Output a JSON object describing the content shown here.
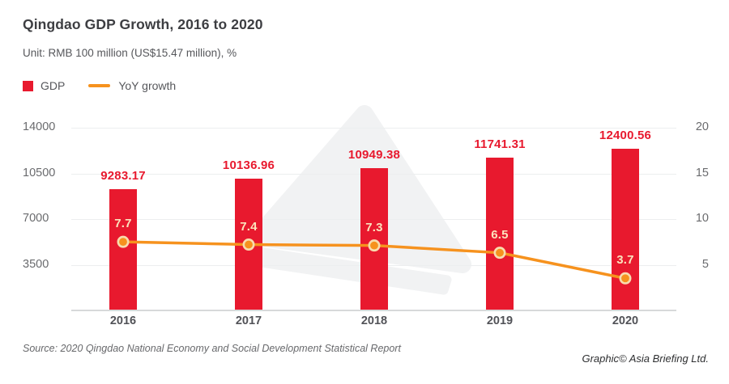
{
  "header": {
    "title": "Qingdao GDP Growth, 2016 to 2020",
    "subtitle": "Unit: RMB 100 million (US$15.47 million), %"
  },
  "legend": {
    "gdp_label": "GDP",
    "yoy_label": "YoY growth"
  },
  "chart_data": {
    "type": "combo-bar-line",
    "title": "Qingdao GDP Growth, 2016 to 2020",
    "unit_note": "Unit: RMB 100 million (US$15.47 million), %",
    "categories": [
      "2016",
      "2017",
      "2018",
      "2019",
      "2020"
    ],
    "series": [
      {
        "name": "GDP",
        "type": "bar",
        "axis": "left",
        "color": "#e8192e",
        "values": [
          9283.17,
          10136.96,
          10949.38,
          11741.31,
          12400.56
        ],
        "labels": [
          "9283.17",
          "10136.96",
          "10949.38",
          "11741.31",
          "12400.56"
        ]
      },
      {
        "name": "YoY growth",
        "type": "line",
        "axis": "right",
        "color": "#f6921e",
        "marker_ring_color": "#f8dcae",
        "label_color": "#fbe3bd",
        "values": [
          7.7,
          7.4,
          7.3,
          6.5,
          3.7
        ],
        "labels": [
          "7.7",
          "7.4",
          "7.3",
          "6.5",
          "3.7"
        ]
      }
    ],
    "left_axis": {
      "min": 0,
      "max": 14000,
      "ticks": [
        14000,
        10500,
        7000,
        3500
      ]
    },
    "right_axis": {
      "min": 0,
      "max": 20,
      "ticks": [
        20,
        15,
        10,
        5
      ]
    },
    "grid": "horizontal",
    "legend_position": "top-left"
  },
  "watermark": {
    "name": "asia-briefing-triangle-logo",
    "color": "#f1f2f3"
  },
  "footer": {
    "source": "Source: 2020 Qingdao National Economy and Social Development Statistical Report",
    "credit": "Graphic© Asia Briefing Ltd."
  }
}
